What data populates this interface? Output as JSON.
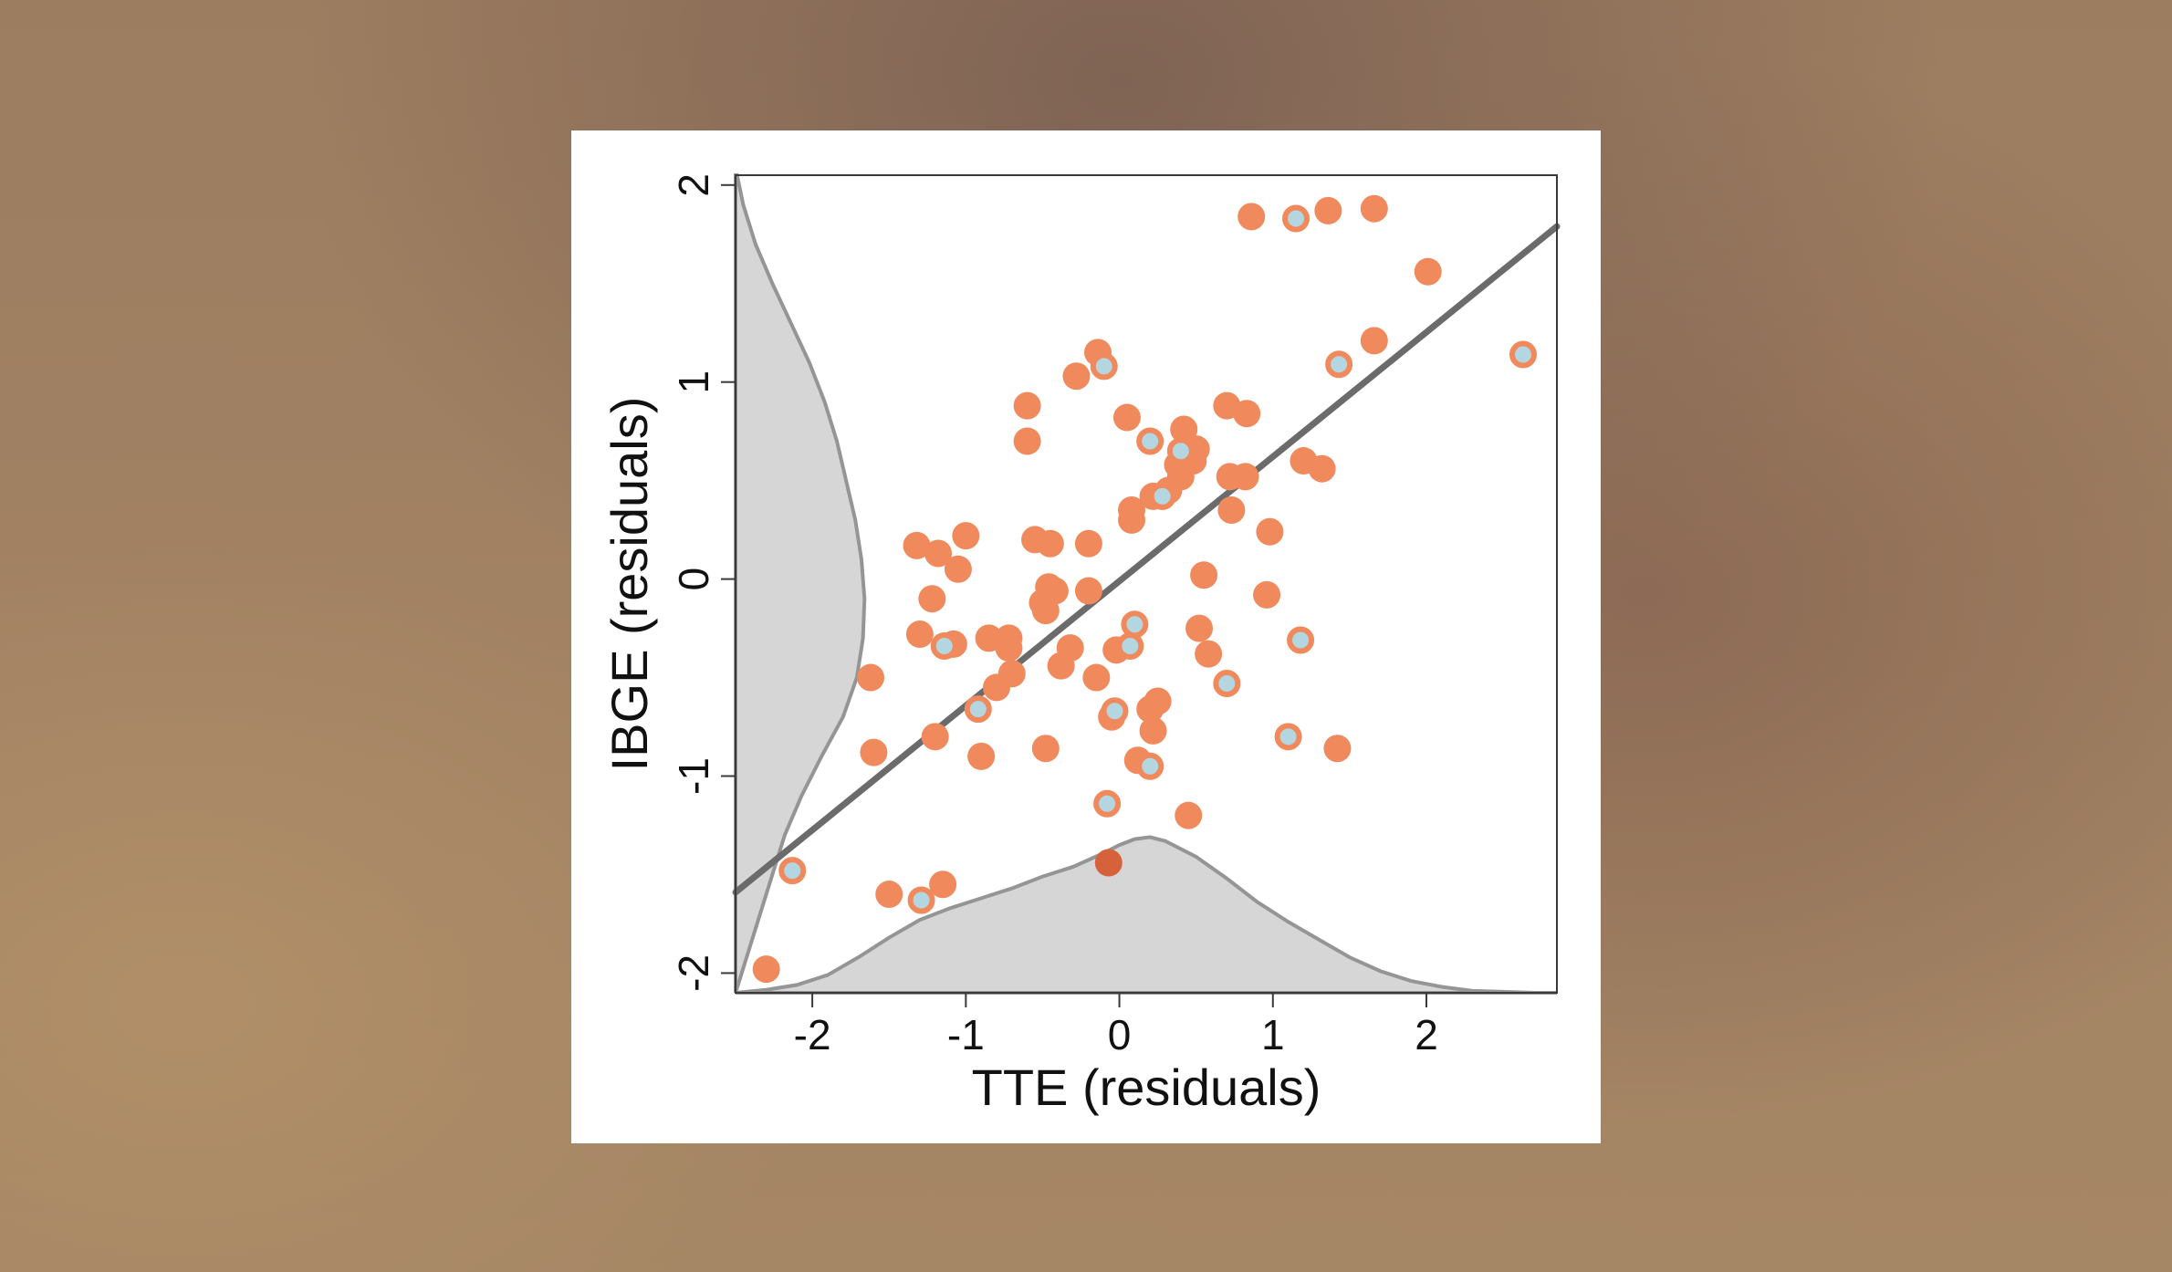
{
  "chart_data": {
    "type": "scatter",
    "xlabel": "TTE (residuals)",
    "ylabel": "IBGE (residuals)",
    "xlim": [
      -2.5,
      2.85
    ],
    "ylim": [
      -2.1,
      2.05
    ],
    "xticks": [
      -2,
      -1,
      0,
      1,
      2
    ],
    "yticks": [
      -2,
      -1,
      0,
      1,
      2
    ],
    "xtick_labels": [
      "-2",
      "-1",
      "0",
      "1",
      "2"
    ],
    "ytick_labels": [
      "-2",
      "-1",
      "0",
      "1",
      "2"
    ],
    "colors": {
      "point_fill": "#f08a5d",
      "highlight_fill": "#b4d6e0",
      "highlight_stroke": "#f08a5d",
      "dark_point": "#d6623c",
      "fit_line": "#6b6b6b",
      "density_fill": "#d6d6d6",
      "density_stroke": "#959595"
    },
    "fit_line": {
      "x": [
        -2.5,
        2.85
      ],
      "y": [
        -1.59,
        1.79
      ]
    },
    "series": [
      {
        "kind": "orange",
        "points": [
          [
            -2.3,
            -1.98
          ],
          [
            -1.5,
            -1.6
          ],
          [
            -1.15,
            -1.55
          ],
          [
            -1.6,
            -0.88
          ],
          [
            -1.62,
            -0.5
          ],
          [
            -1.2,
            -0.8
          ],
          [
            -1.3,
            -0.28
          ],
          [
            -1.22,
            -0.1
          ],
          [
            -1.32,
            0.17
          ],
          [
            -1.18,
            0.13
          ],
          [
            -1.05,
            0.05
          ],
          [
            -1.0,
            0.22
          ],
          [
            -1.08,
            -0.33
          ],
          [
            -0.9,
            -0.9
          ],
          [
            -0.85,
            -0.3
          ],
          [
            -0.8,
            -0.55
          ],
          [
            -0.72,
            -0.3
          ],
          [
            -0.7,
            -0.48
          ],
          [
            -0.72,
            -0.35
          ],
          [
            -0.6,
            0.88
          ],
          [
            -0.6,
            0.7
          ],
          [
            -0.55,
            0.2
          ],
          [
            -0.45,
            0.18
          ],
          [
            -0.5,
            -0.12
          ],
          [
            -0.46,
            -0.04
          ],
          [
            -0.42,
            -0.06
          ],
          [
            -0.48,
            -0.16
          ],
          [
            -0.48,
            -0.86
          ],
          [
            -0.38,
            -0.44
          ],
          [
            -0.32,
            -0.35
          ],
          [
            -0.28,
            1.03
          ],
          [
            -0.2,
            0.18
          ],
          [
            -0.2,
            -0.06
          ],
          [
            -0.14,
            1.15
          ],
          [
            -0.15,
            -0.5
          ],
          [
            -0.05,
            -0.7
          ],
          [
            -0.02,
            -0.36
          ],
          [
            0.05,
            0.82
          ],
          [
            0.08,
            0.35
          ],
          [
            0.08,
            0.3
          ],
          [
            0.12,
            -0.92
          ],
          [
            0.2,
            -0.66
          ],
          [
            0.22,
            -0.77
          ],
          [
            0.25,
            -0.62
          ],
          [
            0.22,
            0.42
          ],
          [
            0.32,
            0.45
          ],
          [
            0.38,
            0.58
          ],
          [
            0.4,
            0.52
          ],
          [
            0.42,
            0.76
          ],
          [
            0.5,
            0.66
          ],
          [
            0.48,
            0.6
          ],
          [
            0.45,
            -1.2
          ],
          [
            0.52,
            -0.25
          ],
          [
            0.55,
            0.02
          ],
          [
            0.58,
            -0.38
          ],
          [
            0.7,
            0.88
          ],
          [
            0.72,
            0.52
          ],
          [
            0.73,
            0.35
          ],
          [
            0.82,
            0.52
          ],
          [
            0.83,
            0.84
          ],
          [
            0.86,
            1.84
          ],
          [
            0.96,
            -0.08
          ],
          [
            0.98,
            0.24
          ],
          [
            1.2,
            0.6
          ],
          [
            1.32,
            0.56
          ],
          [
            1.36,
            1.87
          ],
          [
            1.42,
            -0.86
          ],
          [
            1.66,
            1.21
          ],
          [
            1.66,
            1.88
          ],
          [
            2.01,
            1.56
          ]
        ]
      },
      {
        "kind": "highlight",
        "points": [
          [
            -2.13,
            -1.48
          ],
          [
            -1.29,
            -1.63
          ],
          [
            -1.14,
            -0.34
          ],
          [
            -0.92,
            -0.66
          ],
          [
            -0.1,
            1.08
          ],
          [
            -0.08,
            -1.14
          ],
          [
            -0.03,
            -0.67
          ],
          [
            0.07,
            -0.34
          ],
          [
            0.1,
            -0.23
          ],
          [
            0.2,
            0.7
          ],
          [
            0.2,
            -0.95
          ],
          [
            0.28,
            0.42
          ],
          [
            0.4,
            0.65
          ],
          [
            0.7,
            -0.53
          ],
          [
            1.1,
            -0.8
          ],
          [
            1.15,
            1.83
          ],
          [
            1.18,
            -0.31
          ],
          [
            1.43,
            1.09
          ],
          [
            2.63,
            1.14
          ]
        ]
      },
      {
        "kind": "dark",
        "points": [
          [
            -0.07,
            -1.44
          ]
        ]
      }
    ],
    "density_x": {
      "x": [
        -2.5,
        -2.3,
        -2.1,
        -1.9,
        -1.7,
        -1.5,
        -1.3,
        -1.1,
        -0.9,
        -0.7,
        -0.5,
        -0.3,
        -0.1,
        0.0,
        0.1,
        0.2,
        0.3,
        0.5,
        0.7,
        0.9,
        1.1,
        1.3,
        1.5,
        1.7,
        1.9,
        2.1,
        2.3,
        2.5,
        2.7,
        2.85
      ],
      "y": [
        -2.1,
        -2.085,
        -2.06,
        -2.01,
        -1.92,
        -1.82,
        -1.73,
        -1.67,
        -1.62,
        -1.57,
        -1.51,
        -1.46,
        -1.39,
        -1.35,
        -1.32,
        -1.31,
        -1.33,
        -1.41,
        -1.52,
        -1.64,
        -1.74,
        -1.83,
        -1.92,
        -1.99,
        -2.04,
        -2.07,
        -2.09,
        -2.095,
        -2.1,
        -2.1
      ]
    },
    "density_y": {
      "y": [
        -2.1,
        -1.9,
        -1.7,
        -1.5,
        -1.3,
        -1.1,
        -0.9,
        -0.7,
        -0.5,
        -0.3,
        -0.1,
        0.1,
        0.3,
        0.5,
        0.7,
        0.9,
        1.1,
        1.3,
        1.5,
        1.7,
        1.9,
        2.05
      ],
      "x": [
        -2.5,
        -2.42,
        -2.34,
        -2.26,
        -2.18,
        -2.07,
        -1.94,
        -1.8,
        -1.71,
        -1.67,
        -1.66,
        -1.68,
        -1.72,
        -1.78,
        -1.84,
        -1.92,
        -2.02,
        -2.14,
        -2.26,
        -2.37,
        -2.45,
        -2.49
      ]
    }
  }
}
